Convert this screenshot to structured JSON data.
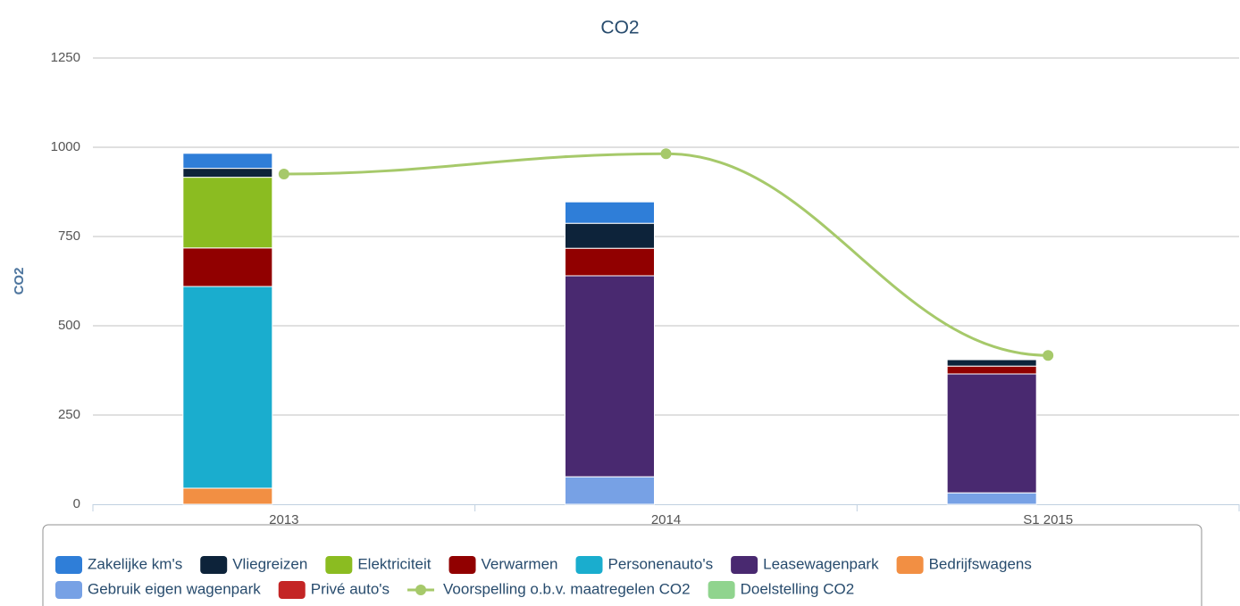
{
  "chart_data": {
    "type": "bar",
    "title": "CO2",
    "y_label": "CO2",
    "categories": [
      "2013",
      "2014",
      "S1 2015"
    ],
    "ylim": [
      0,
      1250
    ],
    "yticks": [
      0,
      250,
      500,
      750,
      1000,
      1250
    ],
    "grid": true,
    "legend": "bottom",
    "series": [
      {
        "name": "Zakelijke km's",
        "type": "column",
        "color": "#2f7ed8",
        "values": [
          42,
          60,
          0
        ]
      },
      {
        "name": "Vliegreizen",
        "type": "column",
        "color": "#0d233a",
        "values": [
          25,
          70,
          18
        ]
      },
      {
        "name": "Elektriciteit",
        "type": "column",
        "color": "#8bbc21",
        "values": [
          198,
          0,
          0
        ]
      },
      {
        "name": "Verwarmen",
        "type": "column",
        "color": "#910000",
        "values": [
          108,
          77,
          22
        ]
      },
      {
        "name": "Personenauto's",
        "type": "column",
        "color": "#1aadce",
        "values": [
          565,
          0,
          0
        ]
      },
      {
        "name": "Leasewagenpark",
        "type": "column",
        "color": "#492970",
        "values": [
          0,
          563,
          333
        ]
      },
      {
        "name": "Bedrijfswagens",
        "type": "column",
        "color": "#f28f43",
        "values": [
          45,
          0,
          0
        ]
      },
      {
        "name": "Gebruik eigen wagenpark",
        "type": "column",
        "color": "#77a1e5",
        "values": [
          0,
          77,
          32
        ]
      },
      {
        "name": "Privé auto's",
        "type": "column",
        "color": "#c42525",
        "values": [
          0,
          0,
          0
        ]
      },
      {
        "name": "Voorspelling o.b.v. maatregelen CO2",
        "type": "line",
        "color": "#a6c96a",
        "values": [
          925,
          982,
          417
        ]
      },
      {
        "name": "Doelstelling CO2",
        "type": "column",
        "color": "#90d48e",
        "values": [
          0,
          0,
          0
        ]
      }
    ]
  }
}
